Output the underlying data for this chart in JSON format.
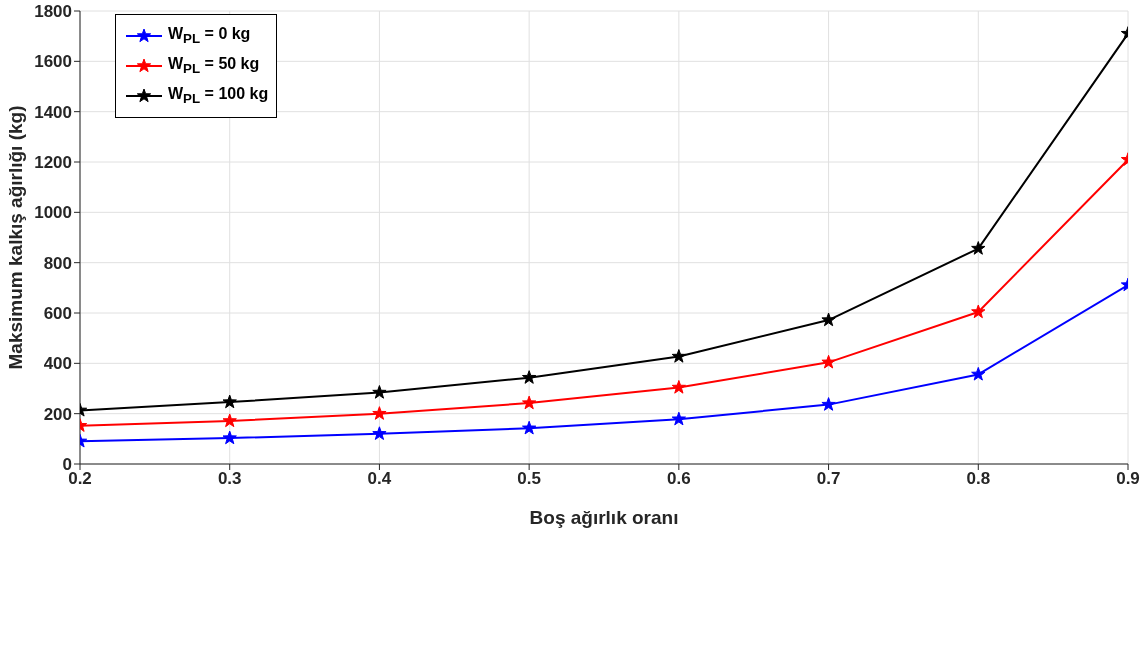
{
  "chart_data": {
    "type": "line",
    "xlabel": "Boş ağırlık oranı",
    "ylabel": "Maksimum kalkış ağırlığı (kg)",
    "x": [
      0.2,
      0.3,
      0.4,
      0.5,
      0.6,
      0.7,
      0.8,
      0.9
    ],
    "series": [
      {
        "name": "W$_{PL}$ = 0 kg",
        "color": "#0000ff",
        "values": [
          90,
          103,
          120,
          142,
          178,
          236,
          356,
          711
        ]
      },
      {
        "name": "W$_{PL}$ = 50 kg",
        "color": "#ff0000",
        "values": [
          152,
          171,
          200,
          242,
          304,
          404,
          604,
          1209
        ]
      },
      {
        "name": "W$_{PL}$ = 100 kg",
        "color": "#000000",
        "values": [
          213,
          246,
          284,
          343,
          427,
          572,
          856,
          1710
        ]
      }
    ],
    "xlim": [
      0.2,
      0.9
    ],
    "xticks": [
      0.2,
      0.3,
      0.4,
      0.5,
      0.6,
      0.7,
      0.8,
      0.9
    ],
    "ylim": [
      0,
      1800
    ],
    "yticks": [
      0,
      200,
      400,
      600,
      800,
      1000,
      1200,
      1400,
      1600,
      1800
    ],
    "grid": true,
    "legend": "top left",
    "marker": "star",
    "line_style": "solid"
  }
}
